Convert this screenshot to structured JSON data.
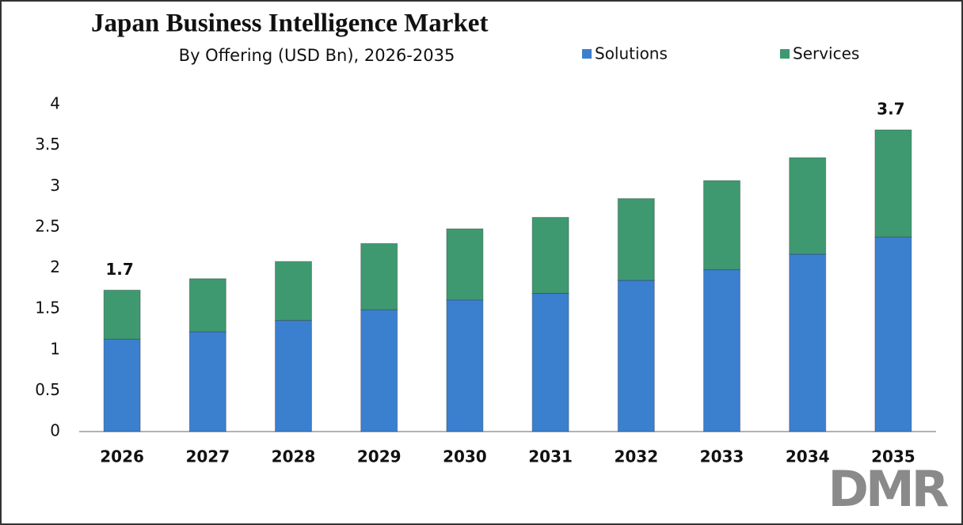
{
  "chart_data": {
    "type": "stacked_bar",
    "title": "Japan Business Intelligence Market",
    "subtitle": "By Offering (USD Bn), 2026-2035",
    "categories": [
      "2026",
      "2027",
      "2028",
      "2029",
      "2030",
      "2031",
      "2032",
      "2033",
      "2034",
      "2035"
    ],
    "series": [
      {
        "name": "Solutions",
        "color": "#3b7fcf",
        "values": [
          1.13,
          1.22,
          1.36,
          1.49,
          1.61,
          1.69,
          1.85,
          1.98,
          2.17,
          2.38
        ]
      },
      {
        "name": "Services",
        "color": "#3e9970",
        "values": [
          0.6,
          0.65,
          0.72,
          0.81,
          0.87,
          0.93,
          1.0,
          1.09,
          1.18,
          1.31
        ]
      }
    ],
    "total_labels": [
      "1.7",
      null,
      null,
      null,
      null,
      null,
      null,
      null,
      null,
      "3.7"
    ],
    "ylim": [
      0,
      4
    ],
    "yticks": [
      0,
      0.5,
      1,
      1.5,
      2,
      2.5,
      3,
      3.5,
      4
    ],
    "grid": false,
    "legend": "top",
    "logo": "DMR"
  }
}
